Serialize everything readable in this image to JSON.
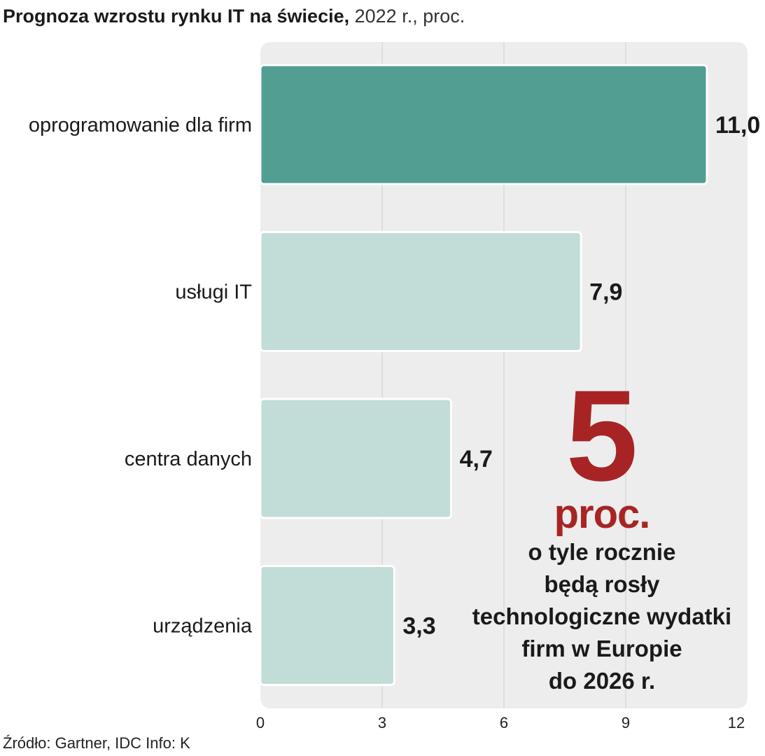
{
  "title": {
    "bold": "Prognoza wzrostu rynku IT na świecie,",
    "rest": " 2022 r., proc."
  },
  "chart_data": {
    "type": "bar",
    "orientation": "horizontal",
    "categories": [
      "oprogramowanie dla firm",
      "usługi IT",
      "centra danych",
      "urządzenia"
    ],
    "values": [
      11.0,
      7.9,
      4.7,
      3.3
    ],
    "value_labels": [
      "11,0",
      "7,9",
      "4,7",
      "3,3"
    ],
    "xlim": [
      0,
      12
    ],
    "xticks": [
      0,
      3,
      6,
      9,
      12
    ],
    "xtick_labels": [
      "0",
      "3",
      "6",
      "9",
      "12"
    ],
    "grid": true,
    "colors": {
      "highlight": "#529e92",
      "default": "#c2dcd8",
      "plot_bg": "#ededed",
      "grid": "#cfcfcf"
    }
  },
  "callout": {
    "number": "5",
    "unit": "proc.",
    "lines": [
      "o tyle rocznie",
      "będą rosły",
      "technologiczne wydatki",
      "firm w Europie",
      "do 2026 r."
    ]
  },
  "source": "Źródło: Gartner, IDC  Info: K"
}
